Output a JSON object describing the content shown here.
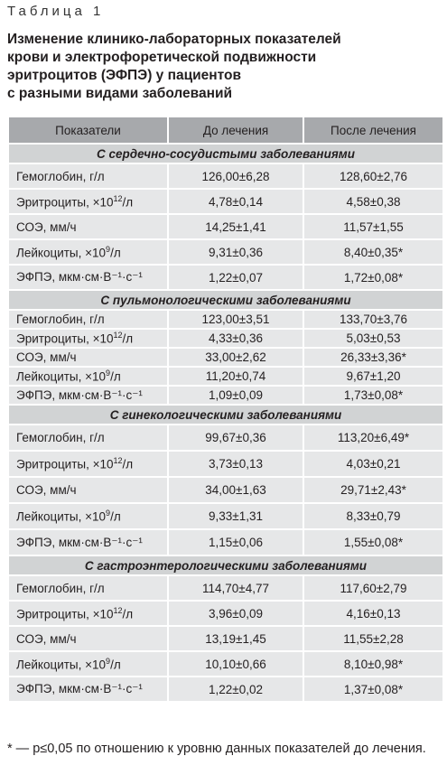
{
  "caption": "Таблица 1",
  "title": [
    "Изменение клинико-лабораторных показателей",
    "крови и электрофоретической подвижности",
    "эритроцитов (ЭФПЭ) у пациентов",
    "с разными видами заболеваний"
  ],
  "table": {
    "header": [
      "Показатели",
      "До лечения",
      "После лечения"
    ],
    "sections": [
      {
        "title": "С сердечно-сосудистыми заболеваниями",
        "rows": [
          {
            "label": "Гемоглобин, г/л",
            "before": "126,00±6,28",
            "after": "128,60±2,76"
          },
          {
            "label": "Эритроциты, ×10",
            "label_sup": "12",
            "label_end": "/л",
            "before": "4,78±0,14",
            "after": "4,58±0,38"
          },
          {
            "label": "СОЭ, мм/ч",
            "before": "14,25±1,41",
            "after": "11,57±1,55"
          },
          {
            "label": "Лейкоциты, ×10",
            "label_sup": "9",
            "label_end": "/л",
            "before": "9,31±0,36",
            "after": "8,40±0,35*"
          },
          {
            "label": "ЭФПЭ, мкм·см·В⁻¹·с⁻¹",
            "before": "1,22±0,07",
            "after": "1,72±0,08*"
          }
        ]
      },
      {
        "title": "С пульмонологическими заболеваниями",
        "rows": [
          {
            "label": "Гемоглобин, г/л",
            "before": "123,00±3,51",
            "after": "133,70±3,76"
          },
          {
            "label": "Эритроциты, ×10",
            "label_sup": "12",
            "label_end": "/л",
            "before": "4,33±0,36",
            "after": "5,03±0,53"
          },
          {
            "label": "СОЭ, мм/ч",
            "before": "33,00±2,62",
            "after": "26,33±3,36*"
          },
          {
            "label": "Лейкоциты, ×10",
            "label_sup": "9",
            "label_end": "/л",
            "before": "11,20±0,74",
            "after": "9,67±1,20"
          },
          {
            "label": "ЭФПЭ, мкм·см·В⁻¹·с⁻¹",
            "before": "1,09±0,09",
            "after": "1,73±0,08*"
          }
        ]
      },
      {
        "title": "С гинекологическими заболеваниями",
        "rows": [
          {
            "label": "Гемоглобин, г/л",
            "before": "99,67±0,36",
            "after": "113,20±6,49*"
          },
          {
            "label": "Эритроциты, ×10",
            "label_sup": "12",
            "label_end": "/л",
            "before": "3,73±0,13",
            "after": "4,03±0,21"
          },
          {
            "label": "СОЭ, мм/ч",
            "before": "34,00±1,63",
            "after": "29,71±2,43*"
          },
          {
            "label": "Лейкоциты, ×10",
            "label_sup": "9",
            "label_end": "/л",
            "before": "9,33±1,31",
            "after": "8,33±0,79"
          },
          {
            "label": "ЭФПЭ, мкм·см·В⁻¹·с⁻¹",
            "before": "1,15±0,06",
            "after": "1,55±0,08*"
          }
        ]
      },
      {
        "title": "С гастроэнтерологическими заболеваниями",
        "rows": [
          {
            "label": "Гемоглобин, г/л",
            "before": "114,70±4,77",
            "after": "117,60±2,79"
          },
          {
            "label": "Эритроциты, ×10",
            "label_sup": "12",
            "label_end": "/л",
            "before": "3,96±0,09",
            "after": "4,16±0,13"
          },
          {
            "label": "СОЭ, мм/ч",
            "before": "13,19±1,45",
            "after": "11,55±2,28"
          },
          {
            "label": "Лейкоциты, ×10",
            "label_sup": "9",
            "label_end": "/л",
            "before": "10,10±0,66",
            "after": "8,10±0,98*"
          },
          {
            "label": "ЭФПЭ, мкм·см·В⁻¹·с⁻¹",
            "before": "1,22±0,02",
            "after": "1,37±0,08*"
          }
        ]
      }
    ]
  },
  "footnote": "* — р≤0,05 по отношению к уровню данных показателей до лечения."
}
